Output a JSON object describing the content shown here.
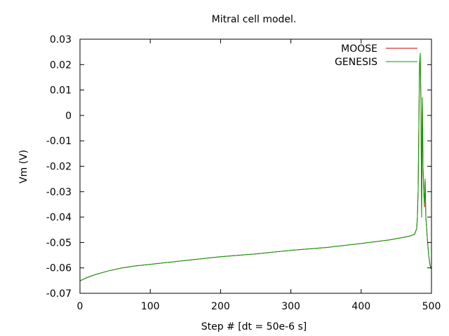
{
  "chart_data": {
    "type": "line",
    "title": "Mitral cell model.",
    "xlabel": "Step # [dt = 50e-6 s]",
    "ylabel": "Vm (V)",
    "xlim": [
      0,
      500
    ],
    "ylim": [
      -0.07,
      0.03
    ],
    "x_ticks": [
      "0",
      "100",
      "200",
      "300",
      "400",
      "500"
    ],
    "y_ticks": [
      "-0.07",
      "-0.06",
      "-0.05",
      "-0.04",
      "-0.03",
      "-0.02",
      "-0.01",
      "0",
      "0.01",
      "0.02",
      "0.03"
    ],
    "grid": false,
    "legend_position": "top-right",
    "series": [
      {
        "name": "MOOSE",
        "color": "#cc0000",
        "x": [
          0,
          10,
          20,
          40,
          60,
          80,
          100,
          150,
          200,
          250,
          300,
          350,
          400,
          440,
          460,
          470,
          476,
          479,
          480,
          481,
          482,
          483,
          484,
          485,
          486,
          487,
          488,
          489,
          490,
          491,
          492,
          494,
          496,
          498,
          500
        ],
        "y": [
          -0.0651,
          -0.0638,
          -0.0628,
          -0.0612,
          -0.06,
          -0.0592,
          -0.0586,
          -0.0571,
          -0.0556,
          -0.0545,
          -0.0531,
          -0.052,
          -0.0504,
          -0.049,
          -0.048,
          -0.0474,
          -0.0468,
          -0.0445,
          -0.04,
          -0.03,
          -0.005,
          0.02,
          0.024,
          0.005,
          -0.04,
          0.007,
          -0.02,
          -0.03,
          -0.036,
          -0.025,
          -0.04,
          -0.048,
          -0.055,
          -0.059,
          -0.0605
        ]
      },
      {
        "name": "GENESIS",
        "color": "#00a000",
        "x": [
          0,
          10,
          20,
          40,
          60,
          80,
          100,
          150,
          200,
          250,
          300,
          350,
          400,
          440,
          460,
          470,
          476,
          479,
          480,
          481,
          482,
          483,
          484,
          485,
          486,
          487,
          488,
          489,
          490,
          491,
          492,
          494,
          496,
          498,
          500
        ],
        "y": [
          -0.0651,
          -0.0638,
          -0.0628,
          -0.0612,
          -0.06,
          -0.0592,
          -0.0586,
          -0.0571,
          -0.0556,
          -0.0545,
          -0.0531,
          -0.052,
          -0.0504,
          -0.049,
          -0.048,
          -0.0474,
          -0.0468,
          -0.0445,
          -0.04,
          -0.03,
          -0.005,
          0.02,
          0.0245,
          0.006,
          -0.04,
          0.007,
          -0.02,
          -0.03,
          -0.035,
          -0.025,
          -0.04,
          -0.048,
          -0.055,
          -0.059,
          -0.0605
        ]
      }
    ]
  }
}
